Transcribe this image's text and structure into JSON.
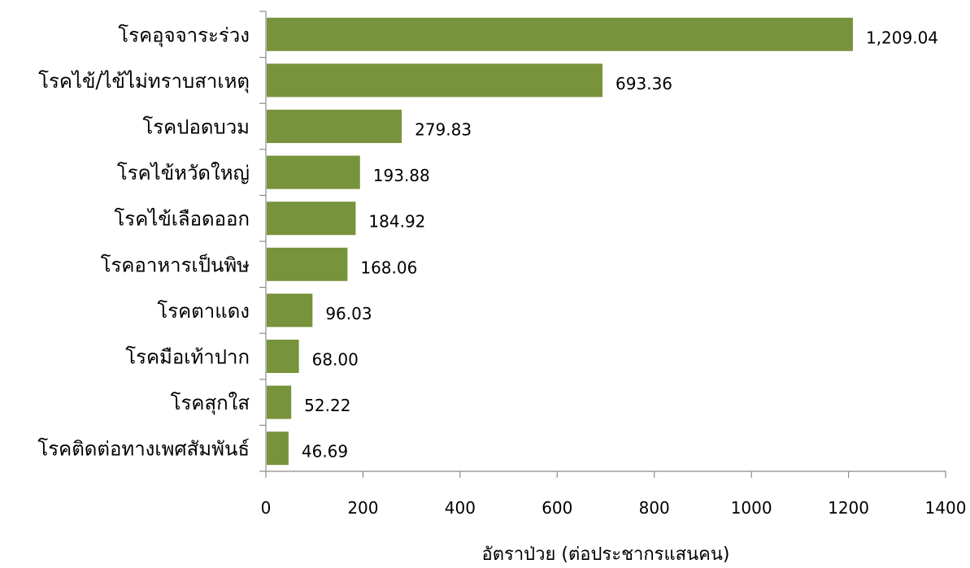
{
  "chart_data": {
    "type": "bar",
    "orientation": "horizontal",
    "categories": [
      "โรคอุจจาระร่วง",
      "โรคไข้/ไข้ไม่ทราบสาเหตุ",
      "โรคปอดบวม",
      "โรคไข้หวัดใหญ่",
      "โรคไข้เลือดออก",
      "โรคอาหารเป็นพิษ",
      "โรคตาแดง",
      "โรคมือเท้าปาก",
      "โรคสุกใส",
      "โรคติดต่อทางเพศสัมพันธ์"
    ],
    "values": [
      1209.04,
      693.36,
      279.83,
      193.88,
      184.92,
      168.06,
      96.03,
      68.0,
      52.22,
      46.69
    ],
    "value_labels": [
      "1,209.04",
      "693.36",
      "279.83",
      "193.88",
      "184.92",
      "168.06",
      "96.03",
      "68.00",
      "52.22",
      "46.69"
    ],
    "xlabel": "อัตราป่วย (ต่อประชากรแสนคน)",
    "xlim": [
      0,
      1400
    ],
    "xticks": [
      "0",
      "200",
      "400",
      "600",
      "800",
      "1000",
      "1200",
      "1400"
    ],
    "grid": false,
    "legend": "none",
    "bar_color": "#77933c"
  }
}
